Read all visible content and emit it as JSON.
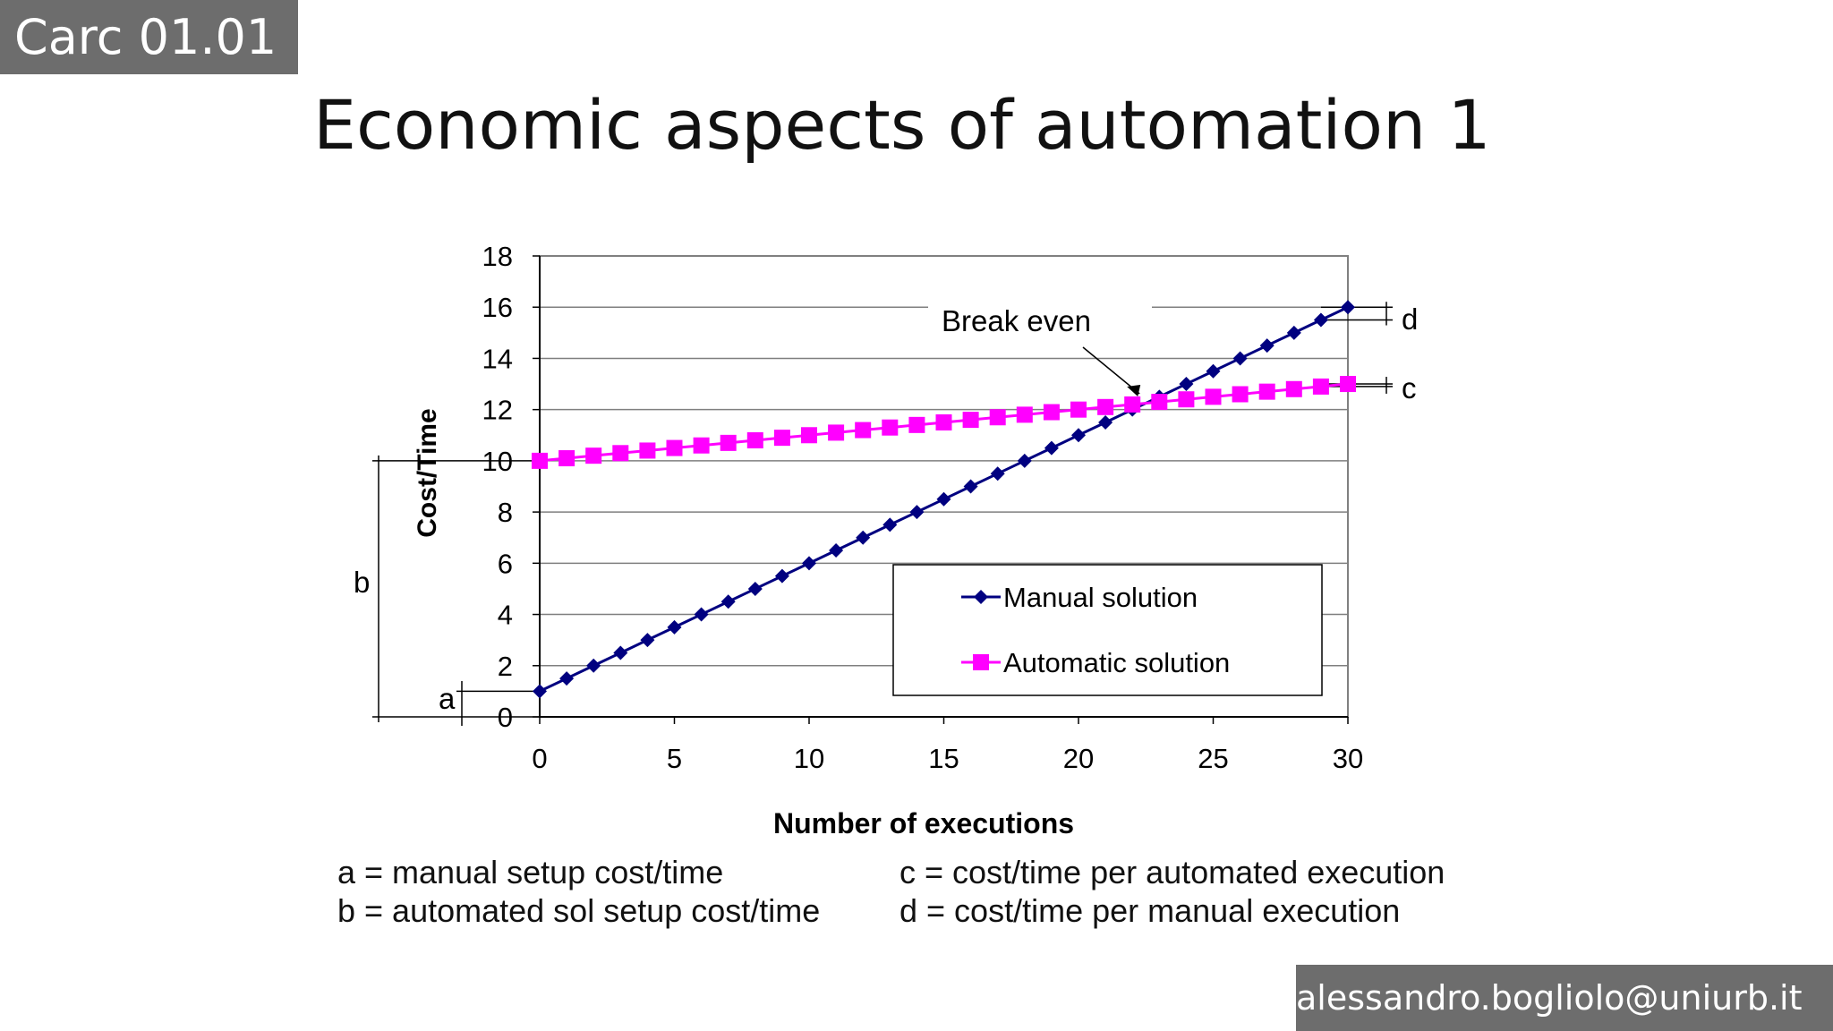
{
  "slide": {
    "section_badge": "Carc 01.01",
    "title": "Economic aspects of automation 1",
    "footer_email": "alessandro.bogliolo@uniurb.it"
  },
  "definitions": {
    "a": "a = manual setup cost/time",
    "b": "b = automated sol setup cost/time",
    "c": "c = cost/time per automated execution",
    "d": "d = cost/time per manual execution"
  },
  "chart_data": {
    "type": "line",
    "xlabel": "Number of executions",
    "ylabel": "Cost/Time",
    "xlim": [
      0,
      30
    ],
    "ylim": [
      0,
      18
    ],
    "xticks": [
      0,
      5,
      10,
      15,
      20,
      25,
      30
    ],
    "yticks": [
      0,
      2,
      4,
      6,
      8,
      10,
      12,
      14,
      16,
      18
    ],
    "grid": "horizontal",
    "legend_position": "bottom-right-inside",
    "x": [
      0,
      1,
      2,
      3,
      4,
      5,
      6,
      7,
      8,
      9,
      10,
      11,
      12,
      13,
      14,
      15,
      16,
      17,
      18,
      19,
      20,
      21,
      22,
      23,
      24,
      25,
      26,
      27,
      28,
      29,
      30
    ],
    "series": [
      {
        "name": "Manual solution",
        "color": "#000080",
        "marker": "diamond",
        "values": [
          1,
          1.5,
          2,
          2.5,
          3,
          3.5,
          4,
          4.5,
          5,
          5.5,
          6,
          6.5,
          7,
          7.5,
          8,
          8.5,
          9,
          9.5,
          10,
          10.5,
          11,
          11.5,
          12,
          12.5,
          13,
          13.5,
          14,
          14.5,
          15,
          15.5,
          16
        ]
      },
      {
        "name": "Automatic solution",
        "color": "#ff00ff",
        "marker": "square",
        "values": [
          10,
          10.1,
          10.2,
          10.3,
          10.4,
          10.5,
          10.6,
          10.7,
          10.8,
          10.9,
          11,
          11.1,
          11.2,
          11.3,
          11.4,
          11.5,
          11.6,
          11.7,
          11.8,
          11.9,
          12,
          12.1,
          12.2,
          12.3,
          12.4,
          12.5,
          12.6,
          12.7,
          12.8,
          12.9,
          13
        ]
      }
    ],
    "annotations": {
      "break_even": "Break even",
      "a": "a",
      "b": "b",
      "c": "c",
      "d": "d"
    }
  }
}
